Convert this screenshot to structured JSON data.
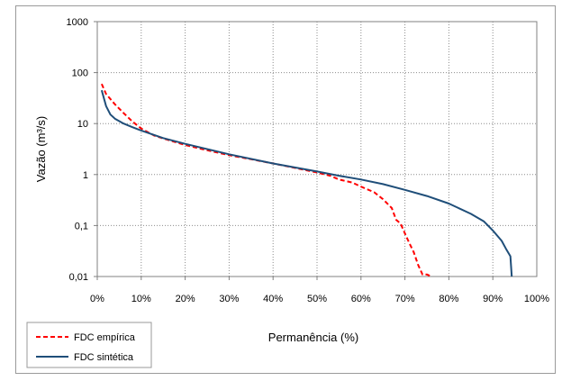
{
  "chart_data": {
    "type": "line",
    "title": "",
    "xlabel": "Permanência (%)",
    "ylabel": "Vazão (m³/s)",
    "xlim": [
      0,
      100
    ],
    "ylim": [
      0.01,
      1000
    ],
    "yscale": "log",
    "grid": true,
    "legend_position": "bottom-left",
    "x_ticks": [
      "0%",
      "10%",
      "20%",
      "30%",
      "40%",
      "50%",
      "60%",
      "70%",
      "80%",
      "90%",
      "100%"
    ],
    "y_ticks": [
      "0,01",
      "0,1",
      "1",
      "10",
      "100",
      "1000"
    ],
    "series": [
      {
        "name": "FDC empírica",
        "color": "#ff0000",
        "style": "dashed",
        "x": [
          1,
          2,
          4,
          6,
          8,
          10,
          13,
          16,
          20,
          25,
          30,
          35,
          40,
          45,
          50,
          53,
          55,
          58,
          60,
          63,
          65,
          67,
          68,
          69,
          70,
          71,
          72,
          73,
          74,
          75,
          76
        ],
        "y": [
          60,
          38,
          24,
          16,
          11,
          8.0,
          5.8,
          4.8,
          3.8,
          3.0,
          2.4,
          2.0,
          1.65,
          1.35,
          1.1,
          0.95,
          0.8,
          0.7,
          0.58,
          0.45,
          0.33,
          0.22,
          0.13,
          0.11,
          0.07,
          0.045,
          0.03,
          0.017,
          0.011,
          0.011,
          0.01
        ]
      },
      {
        "name": "FDC sintética",
        "color": "#1f4e79",
        "style": "solid",
        "x": [
          1,
          2,
          3,
          4,
          6,
          8,
          10,
          15,
          20,
          30,
          40,
          50,
          55,
          60,
          65,
          70,
          75,
          80,
          85,
          88,
          90,
          92,
          93,
          94,
          94.3
        ],
        "y": [
          45,
          22,
          15,
          12.5,
          10,
          8.5,
          7.3,
          5.2,
          4.0,
          2.5,
          1.65,
          1.15,
          0.95,
          0.8,
          0.65,
          0.5,
          0.38,
          0.27,
          0.17,
          0.12,
          0.08,
          0.05,
          0.035,
          0.025,
          0.01
        ]
      }
    ]
  }
}
